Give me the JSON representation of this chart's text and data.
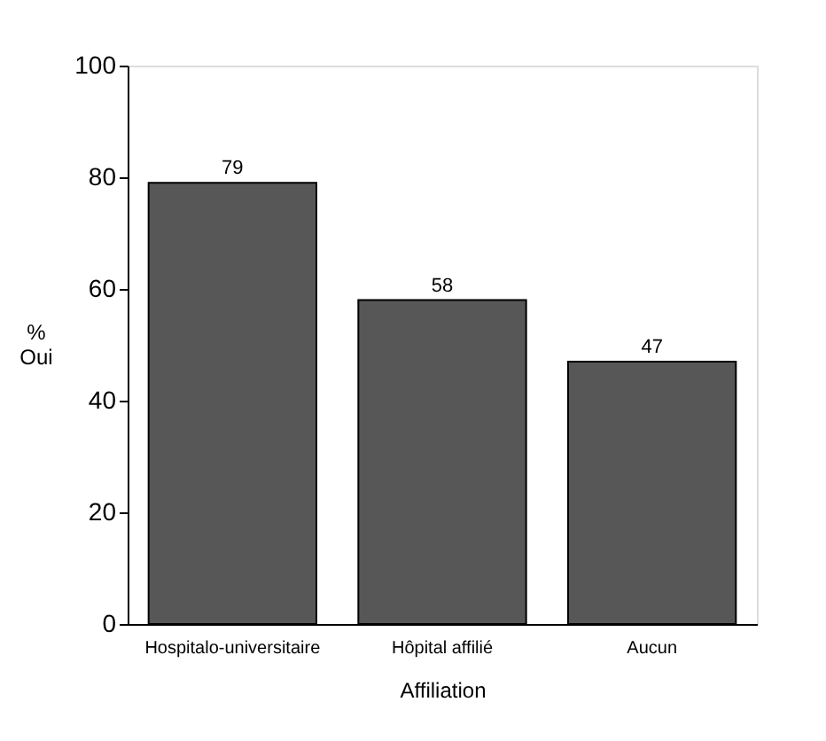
{
  "chart_data": {
    "type": "bar",
    "categories": [
      "Hospitalo-universitaire",
      "Hôpital affilié",
      "Aucun"
    ],
    "values": [
      79,
      58,
      47
    ],
    "color": "#575757",
    "ylim": [
      0,
      100
    ],
    "yticks": [
      0,
      20,
      40,
      60,
      80,
      100
    ],
    "xlabel": "Affiliation",
    "ylabel": "%\nOui",
    "data_labels": true,
    "grid": false
  }
}
